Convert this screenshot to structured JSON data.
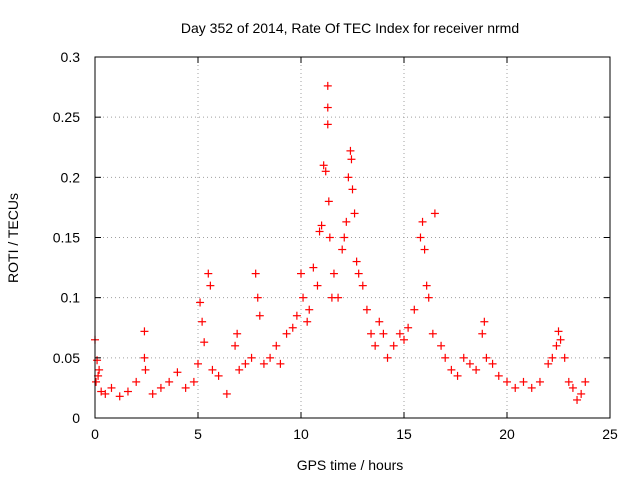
{
  "chart_data": {
    "type": "scatter",
    "title": "Day 352 of 2014, Rate Of TEC Index for receiver nrmd",
    "xlabel": "GPS time / hours",
    "ylabel": "ROTI / TECUs",
    "xlim": [
      0,
      25
    ],
    "ylim": [
      0,
      0.3
    ],
    "x_ticks": [
      0,
      5,
      10,
      15,
      20,
      25
    ],
    "x_tick_labels": [
      "0",
      "5",
      "10",
      "15",
      "20",
      "25"
    ],
    "y_ticks": [
      0,
      0.05,
      0.1,
      0.15,
      0.2,
      0.25,
      0.3
    ],
    "y_tick_labels": [
      "0",
      "0.05",
      "0.1",
      "0.15",
      "0.2",
      "0.25",
      "0.3"
    ],
    "grid": true,
    "marker": "plus",
    "color": "#ff0000",
    "series": [
      {
        "x": [
          0.0,
          0.05,
          0.1,
          0.15,
          0.2,
          0.3,
          0.5,
          0.8,
          1.2,
          1.6,
          2.0,
          2.4,
          2.4,
          2.45,
          2.8,
          3.2,
          3.6,
          4.0,
          4.4,
          4.8,
          5.0,
          5.1,
          5.2,
          5.3,
          5.5,
          5.6,
          5.7,
          6.0,
          6.4,
          6.8,
          6.9,
          7.0,
          7.3,
          7.6,
          7.8,
          7.9,
          8.0,
          8.2,
          8.5,
          8.8,
          9.0,
          9.3,
          9.6,
          9.8,
          10.0,
          10.1,
          10.3,
          10.4,
          10.6,
          10.8,
          10.9,
          11.0,
          11.1,
          11.2,
          11.3,
          11.3,
          11.3,
          11.35,
          11.4,
          11.5,
          11.6,
          11.8,
          12.0,
          12.1,
          12.2,
          12.3,
          12.4,
          12.45,
          12.5,
          12.6,
          12.7,
          12.8,
          13.0,
          13.2,
          13.4,
          13.6,
          13.8,
          14.0,
          14.2,
          14.5,
          14.8,
          15.0,
          15.2,
          15.5,
          15.8,
          15.9,
          16.0,
          16.1,
          16.2,
          16.4,
          16.5,
          16.8,
          17.0,
          17.3,
          17.6,
          17.9,
          18.2,
          18.5,
          18.8,
          18.9,
          19.0,
          19.3,
          19.6,
          20.0,
          20.4,
          20.8,
          21.2,
          21.6,
          22.0,
          22.2,
          22.4,
          22.5,
          22.6,
          22.8,
          23.0,
          23.2,
          23.4,
          23.6,
          23.8
        ],
        "y": [
          0.065,
          0.03,
          0.048,
          0.035,
          0.04,
          0.022,
          0.02,
          0.025,
          0.018,
          0.022,
          0.03,
          0.072,
          0.05,
          0.04,
          0.02,
          0.025,
          0.03,
          0.038,
          0.025,
          0.03,
          0.045,
          0.096,
          0.08,
          0.063,
          0.12,
          0.11,
          0.04,
          0.035,
          0.02,
          0.06,
          0.07,
          0.04,
          0.045,
          0.05,
          0.12,
          0.1,
          0.085,
          0.045,
          0.05,
          0.06,
          0.045,
          0.07,
          0.075,
          0.085,
          0.12,
          0.1,
          0.08,
          0.09,
          0.125,
          0.11,
          0.155,
          0.16,
          0.21,
          0.205,
          0.276,
          0.258,
          0.244,
          0.18,
          0.15,
          0.1,
          0.12,
          0.1,
          0.14,
          0.15,
          0.163,
          0.2,
          0.222,
          0.215,
          0.19,
          0.17,
          0.13,
          0.12,
          0.11,
          0.09,
          0.07,
          0.06,
          0.08,
          0.07,
          0.05,
          0.06,
          0.07,
          0.065,
          0.075,
          0.09,
          0.15,
          0.163,
          0.14,
          0.11,
          0.1,
          0.07,
          0.17,
          0.06,
          0.05,
          0.04,
          0.035,
          0.05,
          0.045,
          0.04,
          0.07,
          0.08,
          0.05,
          0.045,
          0.035,
          0.03,
          0.025,
          0.03,
          0.025,
          0.03,
          0.045,
          0.05,
          0.06,
          0.072,
          0.065,
          0.05,
          0.03,
          0.025,
          0.015,
          0.02,
          0.03
        ]
      }
    ]
  }
}
